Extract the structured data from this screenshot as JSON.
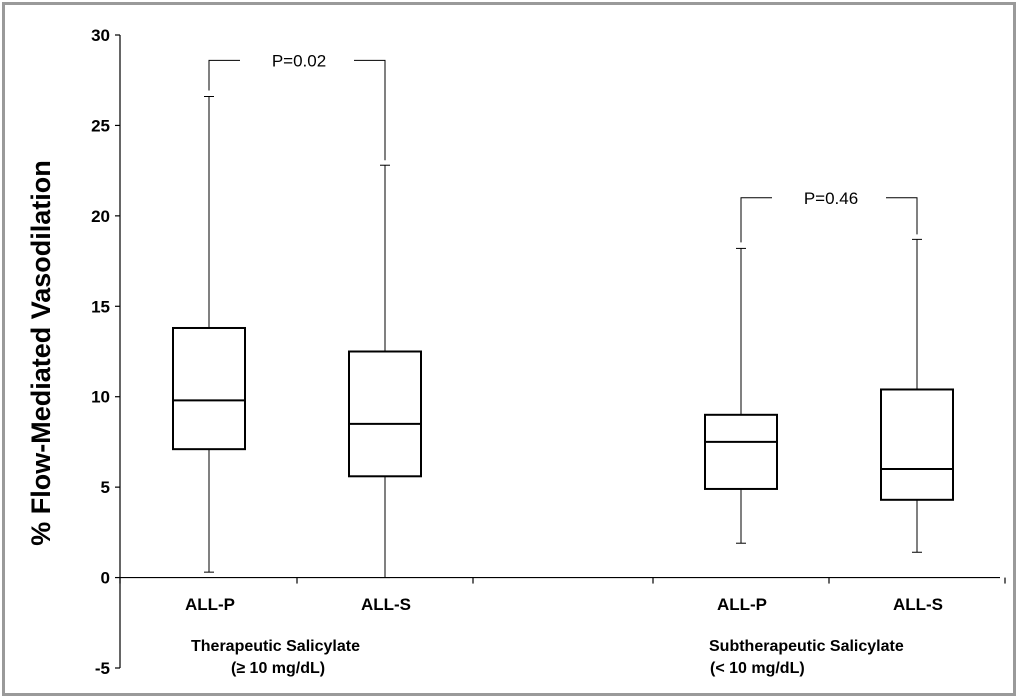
{
  "chart_data": {
    "type": "box",
    "title": "",
    "ylabel": "% Flow-Mediated Vasodilation",
    "ylim": [
      -5,
      30
    ],
    "yticks": [
      -5,
      0,
      5,
      10,
      15,
      20,
      25,
      30
    ],
    "grid": false,
    "categories": [
      "ALL-P",
      "ALL-S",
      "ALL-P",
      "ALL-S"
    ],
    "groups": [
      {
        "label_line1": "Therapeutic Salicylate",
        "label_line2": "(≥ 10 mg/dL)"
      },
      {
        "label_line1": "Subtherapeutic Salicylate",
        "label_line2": "(< 10 mg/dL)"
      }
    ],
    "boxes": [
      {
        "category": "ALL-P",
        "group": 0,
        "min": 0.3,
        "q1": 7.1,
        "median": 9.8,
        "q3": 13.8,
        "max": 26.6
      },
      {
        "category": "ALL-S",
        "group": 0,
        "min": 0.0,
        "q1": 5.6,
        "median": 8.5,
        "q3": 12.5,
        "max": 22.8
      },
      {
        "category": "ALL-P",
        "group": 1,
        "min": 1.9,
        "q1": 4.9,
        "median": 7.5,
        "q3": 9.0,
        "max": 18.2
      },
      {
        "category": "ALL-S",
        "group": 1,
        "min": 1.4,
        "q1": 4.3,
        "median": 6.0,
        "q3": 10.4,
        "max": 18.7
      }
    ],
    "comparisons": [
      {
        "label": "P=0.02",
        "between": [
          0,
          1
        ],
        "level": 28.6
      },
      {
        "label": "P=0.46",
        "between": [
          2,
          3
        ],
        "level": 21.0
      }
    ]
  }
}
